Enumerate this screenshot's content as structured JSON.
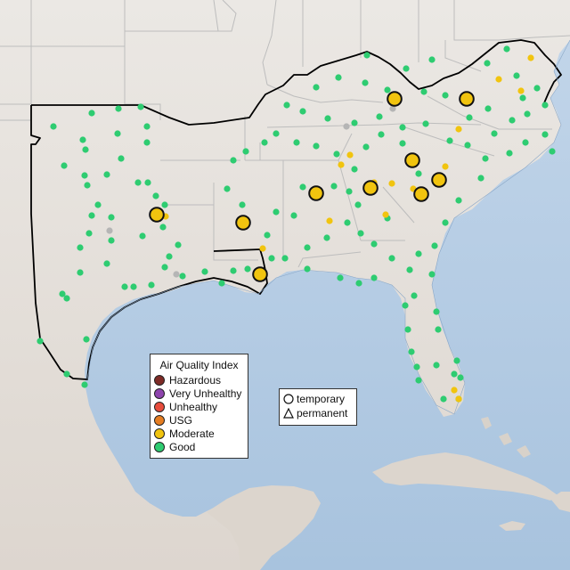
{
  "colors": {
    "land": "#e8e4e0",
    "land_south": "#dcd6d0",
    "water": "#b8cfe6",
    "water_deep": "#a9c4df",
    "state_border": "#bdbdbd",
    "epa_border": "#000000"
  },
  "legend": {
    "title": "Air Quality Index",
    "items": [
      {
        "label": "Hazardous",
        "color": "#7e2b26"
      },
      {
        "label": "Very Unhealthy",
        "color": "#8e44ad"
      },
      {
        "label": "Unhealthy",
        "color": "#e74c3c"
      },
      {
        "label": "USG",
        "color": "#e67e22"
      },
      {
        "label": "Moderate",
        "color": "#f1c40f"
      },
      {
        "label": "Good",
        "color": "#2ecc71"
      }
    ]
  },
  "site_type_legend": {
    "items": [
      {
        "label": "temporary",
        "icon": "circle-icon"
      },
      {
        "label": "permanent",
        "icon": "triangle-icon"
      }
    ]
  },
  "monitors": {
    "temporary_moderate": [
      [
        443,
        111
      ],
      [
        524,
        111
      ],
      [
        463,
        180
      ],
      [
        493,
        202
      ],
      [
        416,
        211
      ],
      [
        473,
        218
      ],
      [
        355,
        217
      ],
      [
        176,
        241
      ],
      [
        273,
        250
      ],
      [
        292,
        308
      ]
    ],
    "permanent_good": [
      [
        412,
        62
      ],
      [
        456,
        77
      ],
      [
        485,
        67
      ],
      [
        547,
        71
      ],
      [
        569,
        55
      ],
      [
        580,
        85
      ],
      [
        603,
        99
      ],
      [
        612,
        118
      ],
      [
        587,
        110
      ],
      [
        592,
        128
      ],
      [
        575,
        135
      ],
      [
        555,
        150
      ],
      [
        548,
        122
      ],
      [
        527,
        132
      ],
      [
        500,
        107
      ],
      [
        476,
        103
      ],
      [
        435,
        101
      ],
      [
        410,
        93
      ],
      [
        380,
        87
      ],
      [
        355,
        98
      ],
      [
        322,
        118
      ],
      [
        340,
        125
      ],
      [
        368,
        133
      ],
      [
        398,
        138
      ],
      [
        426,
        131
      ],
      [
        452,
        143
      ],
      [
        478,
        139
      ],
      [
        505,
        158
      ],
      [
        525,
        163
      ],
      [
        545,
        178
      ],
      [
        572,
        172
      ],
      [
        590,
        160
      ],
      [
        612,
        151
      ],
      [
        620,
        170
      ],
      [
        540,
        200
      ],
      [
        515,
        225
      ],
      [
        500,
        250
      ],
      [
        488,
        276
      ],
      [
        470,
        285
      ],
      [
        460,
        303
      ],
      [
        440,
        290
      ],
      [
        420,
        274
      ],
      [
        405,
        262
      ],
      [
        390,
        250
      ],
      [
        367,
        267
      ],
      [
        345,
        278
      ],
      [
        320,
        290
      ],
      [
        300,
        264
      ],
      [
        272,
        230
      ],
      [
        255,
        212
      ],
      [
        262,
        180
      ],
      [
        276,
        170
      ],
      [
        297,
        160
      ],
      [
        310,
        150
      ],
      [
        333,
        160
      ],
      [
        355,
        164
      ],
      [
        378,
        173
      ],
      [
        398,
        190
      ],
      [
        411,
        165
      ],
      [
        428,
        151
      ],
      [
        452,
        161
      ],
      [
        470,
        195
      ],
      [
        435,
        245
      ],
      [
        402,
        230
      ],
      [
        392,
        215
      ],
      [
        375,
        209
      ],
      [
        340,
        210
      ],
      [
        330,
        242
      ],
      [
        310,
        238
      ],
      [
        305,
        290
      ],
      [
        278,
        302
      ],
      [
        262,
        304
      ],
      [
        249,
        318
      ],
      [
        230,
        305
      ],
      [
        205,
        310
      ],
      [
        185,
        300
      ],
      [
        190,
        288
      ],
      [
        200,
        275
      ],
      [
        183,
        255
      ],
      [
        160,
        265
      ],
      [
        125,
        270
      ],
      [
        100,
        262
      ],
      [
        90,
        278
      ],
      [
        90,
        306
      ],
      [
        70,
        330
      ],
      [
        75,
        335
      ],
      [
        120,
        296
      ],
      [
        140,
        322
      ],
      [
        150,
        322
      ],
      [
        170,
        320
      ],
      [
        97,
        381
      ],
      [
        45,
        383
      ],
      [
        75,
        420
      ],
      [
        95,
        432
      ],
      [
        103,
        242
      ],
      [
        125,
        244
      ],
      [
        110,
        230
      ],
      [
        98,
        208
      ],
      [
        120,
        196
      ],
      [
        155,
        205
      ],
      [
        175,
        220
      ],
      [
        185,
        230
      ],
      [
        166,
        205
      ],
      [
        165,
        160
      ],
      [
        165,
        142
      ],
      [
        133,
        122
      ],
      [
        132,
        150
      ],
      [
        103,
        127
      ],
      [
        60,
        142
      ],
      [
        93,
        157
      ],
      [
        96,
        168
      ],
      [
        72,
        186
      ],
      [
        95,
        197
      ],
      [
        136,
        178
      ],
      [
        158,
        120
      ],
      [
        345,
        302
      ],
      [
        382,
        312
      ],
      [
        403,
        318
      ],
      [
        420,
        312
      ],
      [
        465,
        332
      ],
      [
        455,
        343
      ],
      [
        485,
        308
      ],
      [
        490,
        350
      ],
      [
        492,
        370
      ],
      [
        458,
        370
      ],
      [
        462,
        395
      ],
      [
        468,
        412
      ],
      [
        470,
        427
      ],
      [
        490,
        410
      ],
      [
        513,
        405
      ],
      [
        510,
        420
      ],
      [
        517,
        424
      ],
      [
        498,
        448
      ],
      [
        515,
        448
      ]
    ],
    "permanent_moderate": [
      [
        383,
        185
      ],
      [
        393,
        174
      ],
      [
        370,
        248
      ],
      [
        295,
        279
      ],
      [
        420,
        205
      ],
      [
        440,
        206
      ],
      [
        433,
        241
      ],
      [
        464,
        212
      ],
      [
        500,
        187
      ],
      [
        515,
        145
      ],
      [
        560,
        89
      ],
      [
        585,
        102
      ],
      [
        596,
        65
      ],
      [
        510,
        438
      ],
      [
        515,
        448
      ],
      [
        186,
        243
      ]
    ],
    "permanent_nodata": [
      [
        389,
        142
      ],
      [
        441,
        122
      ],
      [
        123,
        259
      ],
      [
        198,
        308
      ]
    ]
  }
}
